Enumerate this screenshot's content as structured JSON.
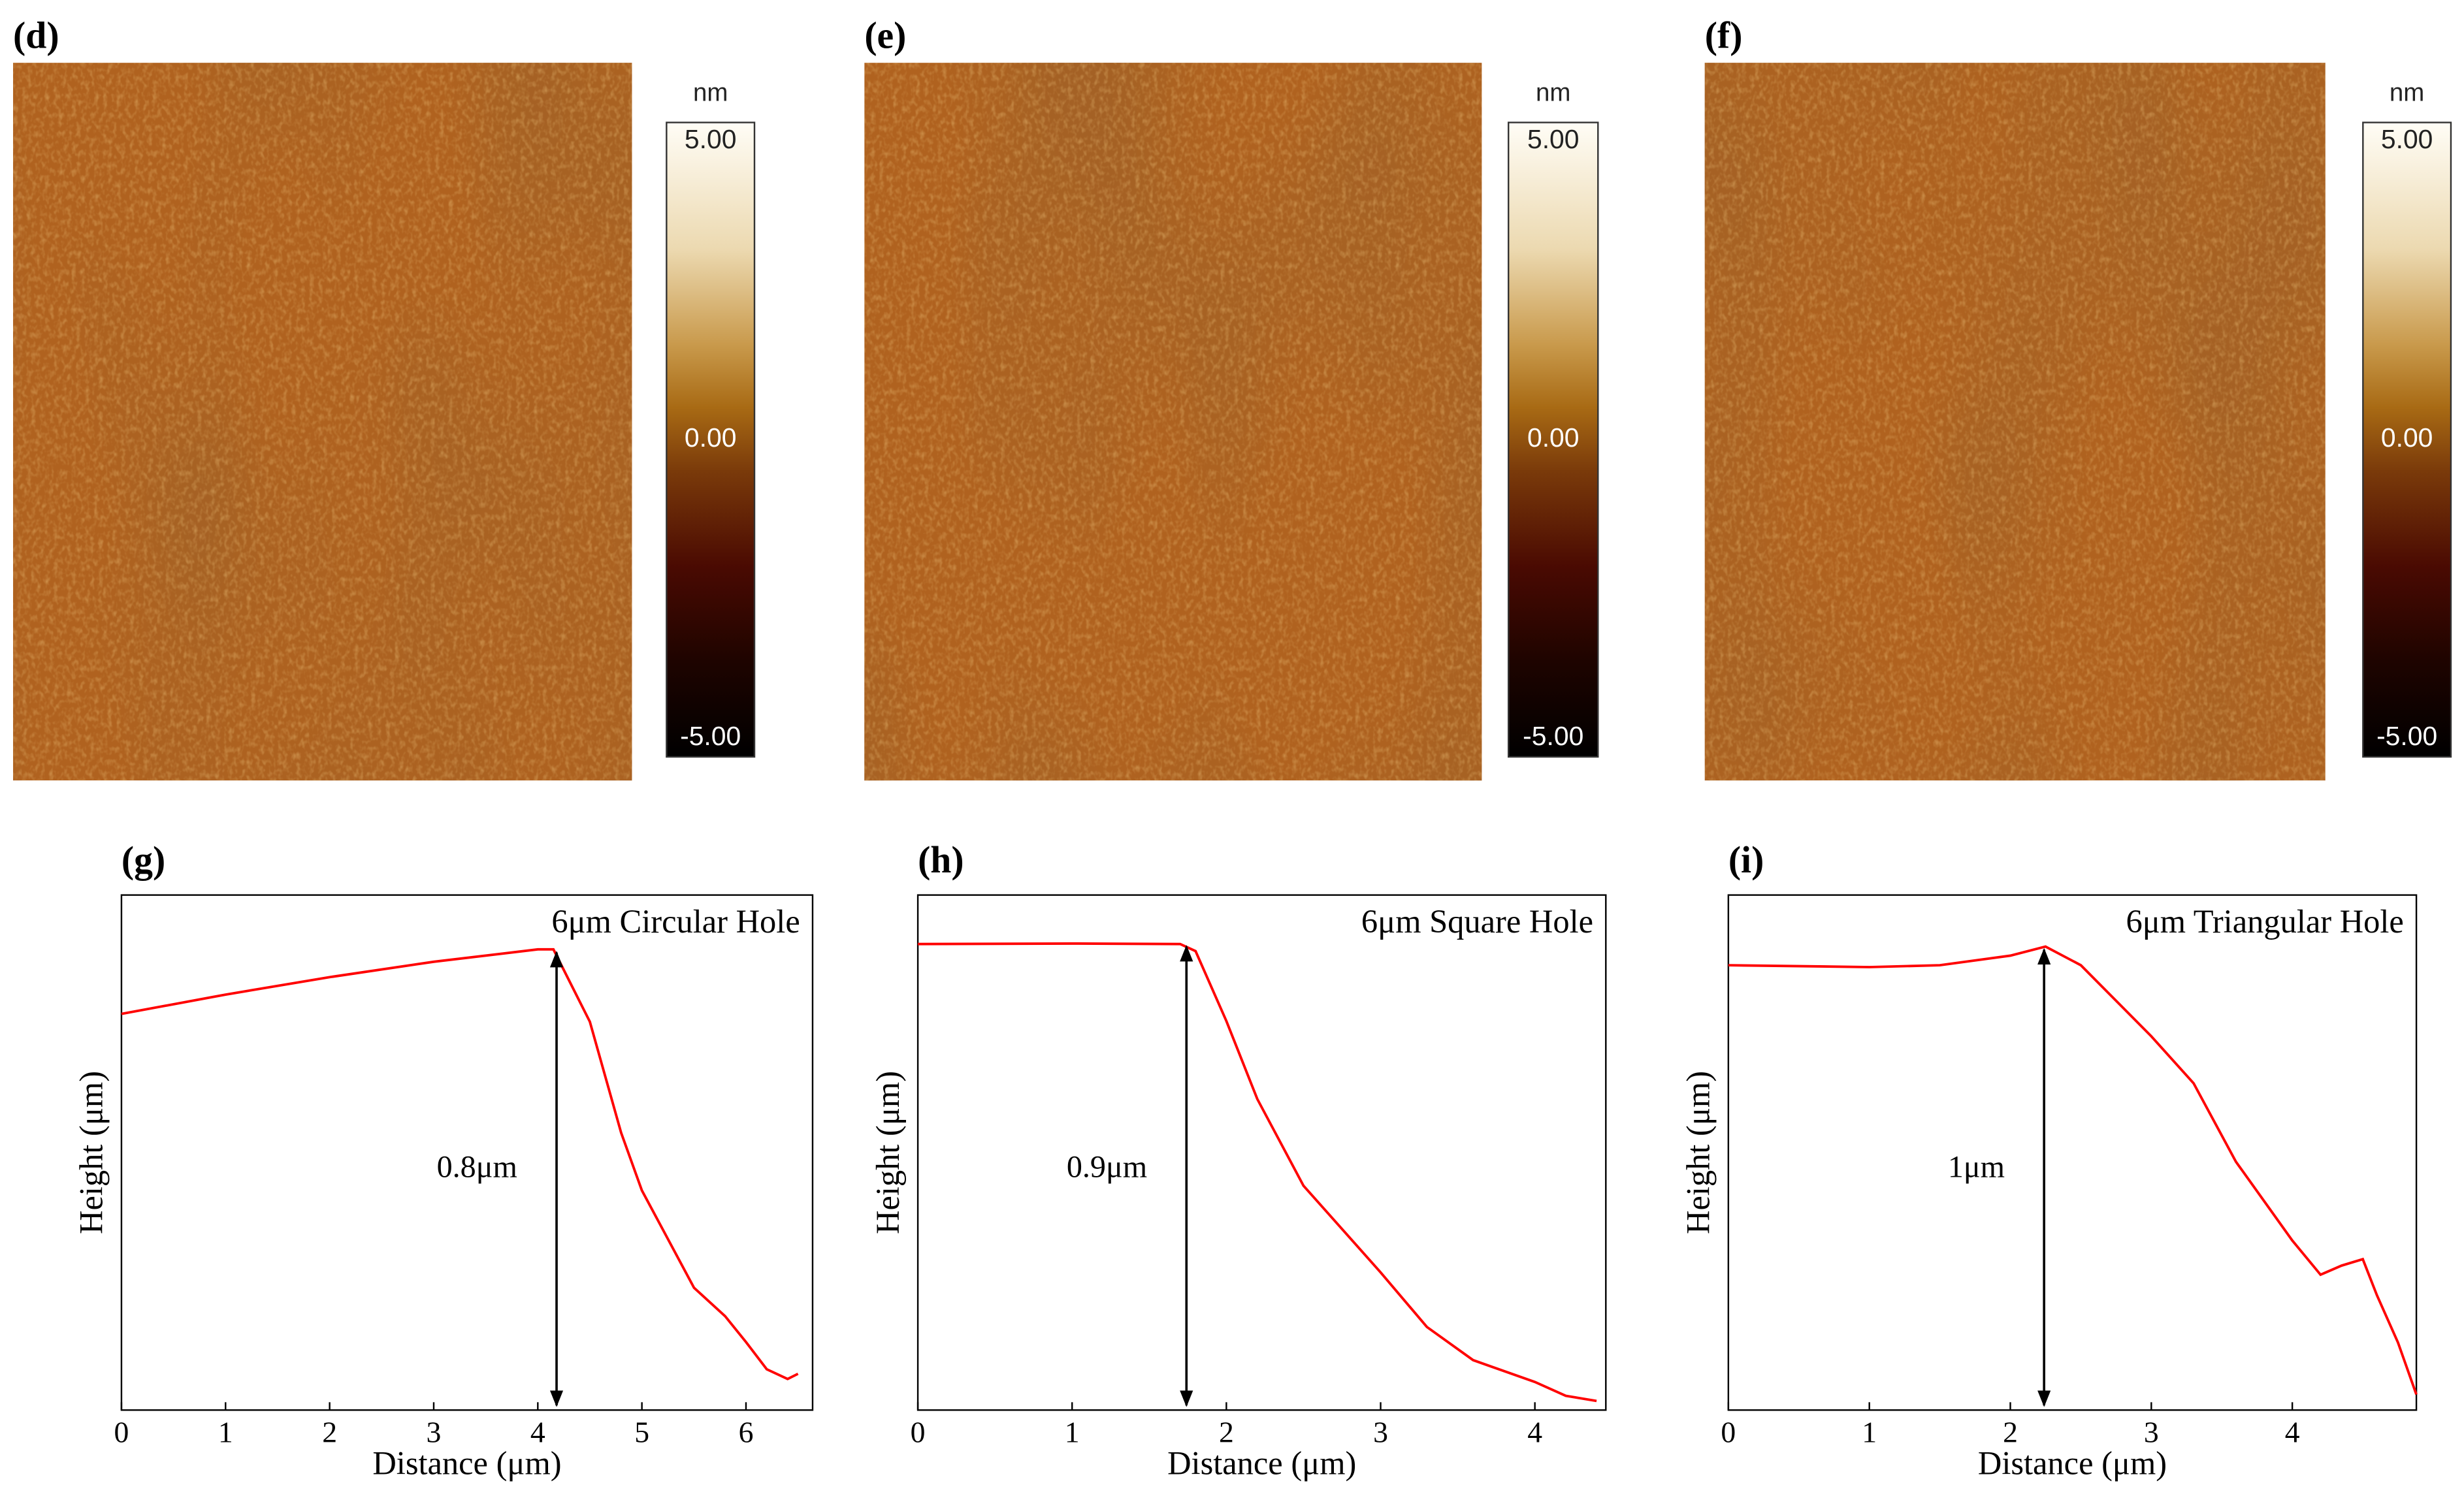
{
  "chart_data": [
    {
      "type": "image",
      "label": "(d)",
      "colorbar_label": "nm",
      "zlim": [
        -5,
        5
      ],
      "zticks": [
        {
          "value": 5,
          "label": "5.00"
        },
        {
          "value": 0,
          "label": "0.00"
        },
        {
          "value": -5,
          "label": "-5.00"
        }
      ]
    },
    {
      "type": "image",
      "label": "(e)",
      "colorbar_label": "nm",
      "zlim": [
        -5,
        5
      ],
      "zticks": [
        {
          "value": 5,
          "label": "5.00"
        },
        {
          "value": 0,
          "label": "0.00"
        },
        {
          "value": -5,
          "label": "-5.00"
        }
      ]
    },
    {
      "type": "image",
      "label": "(f)",
      "colorbar_label": "nm",
      "zlim": [
        -5,
        5
      ],
      "zticks": [
        {
          "value": 5,
          "label": "5.00"
        },
        {
          "value": 0,
          "label": "0.00"
        },
        {
          "value": -5,
          "label": "-5.00"
        }
      ]
    },
    {
      "type": "line",
      "label": "(g)",
      "annotation": "6μm Circular Hole",
      "measure_label": "0.8μm",
      "xlabel": "Distance (μm)",
      "ylabel": "Height (μm)",
      "x": [
        0,
        1,
        2,
        3,
        4,
        4.15,
        4.5,
        4.8,
        5.0,
        5.5,
        5.8,
        6.0,
        6.2,
        6.4,
        6.5
      ],
      "series": [
        {
          "color": "#ff0000",
          "values": [
            0.7,
            0.734,
            0.765,
            0.792,
            0.814,
            0.814,
            0.686,
            0.49,
            0.388,
            0.216,
            0.166,
            0.12,
            0.072,
            0.055,
            0.064
          ]
        }
      ],
      "xlim": [
        0,
        6.64
      ],
      "xticks": [
        0,
        1,
        2,
        3,
        4,
        5,
        6
      ],
      "ylim": [
        0,
        0.91
      ]
    },
    {
      "type": "line",
      "label": "(h)",
      "annotation": "6μm Square Hole",
      "measure_label": "0.9μm",
      "xlabel": "Distance (μm)",
      "ylabel": "Height (μm)",
      "x": [
        0,
        1,
        1.7,
        1.8,
        2.0,
        2.2,
        2.5,
        3.0,
        3.3,
        3.6,
        4.0,
        4.2,
        4.4
      ],
      "series": [
        {
          "color": "#ff0000",
          "values": [
            0.914,
            0.915,
            0.914,
            0.9,
            0.763,
            0.61,
            0.44,
            0.27,
            0.163,
            0.098,
            0.055,
            0.028,
            0.018
          ]
        }
      ],
      "xlim": [
        0,
        4.46
      ],
      "xticks": [
        0,
        1,
        2,
        3,
        4
      ],
      "ylim": [
        0,
        1.01
      ]
    },
    {
      "type": "line",
      "label": "(i)",
      "annotation": "6μm Triangular Hole",
      "measure_label": "1μm",
      "xlabel": "Distance (μm)",
      "ylabel": "Height (μm)",
      "x": [
        0,
        1,
        1.5,
        2.0,
        2.25,
        2.5,
        3.0,
        3.3,
        3.6,
        4.0,
        4.2,
        4.35,
        4.5,
        4.6,
        4.75,
        4.88
      ],
      "series": [
        {
          "color": "#ff0000",
          "values": [
            0.976,
            0.972,
            0.976,
            0.997,
            1.017,
            0.976,
            0.82,
            0.717,
            0.545,
            0.372,
            0.297,
            0.317,
            0.331,
            0.252,
            0.148,
            0.034
          ]
        }
      ],
      "xlim": [
        0,
        4.88
      ],
      "xticks": [
        0,
        1,
        2,
        3,
        4
      ],
      "ylim": [
        0,
        1.13
      ]
    }
  ]
}
